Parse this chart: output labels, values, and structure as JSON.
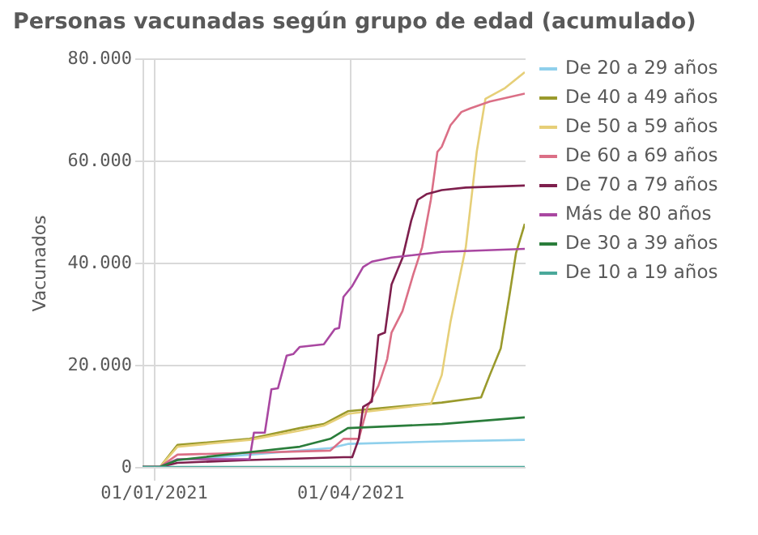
{
  "chart_data": {
    "type": "line",
    "title": "Personas vacunadas según grupo de edad (acumulado)",
    "ylabel": "Vacunados",
    "xlim": [
      "2020-12-27",
      "2021-06-20"
    ],
    "xticks": [
      {
        "value": "2021-01-01",
        "label": "01/01/2021"
      },
      {
        "value": "2021-04-01",
        "label": "01/04/2021"
      }
    ],
    "ylim": [
      0,
      80000
    ],
    "yticks": [
      {
        "value": 0,
        "label": "0"
      },
      {
        "value": 20000,
        "label": "20.000"
      },
      {
        "value": 40000,
        "label": "40.000"
      },
      {
        "value": 60000,
        "label": "60.000"
      },
      {
        "value": 80000,
        "label": "80.000"
      }
    ],
    "grid": true,
    "legend": "right",
    "series": [
      {
        "name": "De 20 a 29 años",
        "color": "#8fd0ec",
        "x": [
          "2020-12-27",
          "2021-01-04",
          "2021-01-12",
          "2021-02-14",
          "2021-03-23",
          "2021-03-31",
          "2021-05-13",
          "2021-06-20"
        ],
        "values": [
          0,
          0,
          1350,
          2400,
          3700,
          4500,
          5000,
          5300
        ]
      },
      {
        "name": "De 40 a 49 años",
        "color": "#9a9a2c",
        "x": [
          "2020-12-27",
          "2021-01-04",
          "2021-01-12",
          "2021-02-14",
          "2021-03-09",
          "2021-03-20",
          "2021-03-31",
          "2021-05-13",
          "2021-05-31",
          "2021-06-04",
          "2021-06-09",
          "2021-06-13",
          "2021-06-16",
          "2021-06-20"
        ],
        "values": [
          0,
          0,
          4300,
          5500,
          7600,
          8400,
          10900,
          12600,
          13600,
          18000,
          23200,
          33600,
          41900,
          47600
        ]
      },
      {
        "name": "De 50 a 59 años",
        "color": "#e6cf78",
        "x": [
          "2020-12-27",
          "2021-01-04",
          "2021-01-12",
          "2021-02-14",
          "2021-03-09",
          "2021-03-20",
          "2021-03-31",
          "2021-05-08",
          "2021-05-13",
          "2021-05-17",
          "2021-05-24",
          "2021-05-29",
          "2021-06-02",
          "2021-06-11",
          "2021-06-20"
        ],
        "values": [
          0,
          0,
          3950,
          5300,
          7100,
          8100,
          10400,
          12300,
          18000,
          28400,
          43000,
          61700,
          72100,
          74200,
          77300
        ]
      },
      {
        "name": "De 60 a 69 años",
        "color": "#db6f86",
        "x": [
          "2020-12-27",
          "2021-01-04",
          "2021-01-12",
          "2021-03-23",
          "2021-03-29",
          "2021-04-05",
          "2021-04-09",
          "2021-04-14",
          "2021-04-18",
          "2021-04-20",
          "2021-04-25",
          "2021-04-30",
          "2021-05-04",
          "2021-05-08",
          "2021-05-11",
          "2021-05-13",
          "2021-05-17",
          "2021-05-22",
          "2021-05-26",
          "2021-06-04",
          "2021-06-20"
        ],
        "values": [
          0,
          0,
          2400,
          3200,
          5500,
          5500,
          11750,
          15900,
          21100,
          26300,
          30500,
          37750,
          43000,
          52300,
          61700,
          62700,
          66900,
          69500,
          70200,
          71550,
          73100
        ]
      },
      {
        "name": "De 70 a 79 años",
        "color": "#7e1f4d",
        "x": [
          "2020-12-27",
          "2021-01-04",
          "2021-01-12",
          "2021-02-14",
          "2021-03-29",
          "2021-04-02",
          "2021-04-05",
          "2021-04-07",
          "2021-04-11",
          "2021-04-14",
          "2021-04-17",
          "2021-04-20",
          "2021-04-25",
          "2021-04-29",
          "2021-05-02",
          "2021-05-06",
          "2021-05-13",
          "2021-05-24",
          "2021-06-20"
        ],
        "values": [
          0,
          0,
          800,
          1350,
          1900,
          1900,
          5500,
          11750,
          12800,
          25800,
          26300,
          35700,
          40900,
          48200,
          52300,
          53400,
          54200,
          54700,
          55100
        ]
      },
      {
        "name": "Más de 80 años",
        "color": "#a947a1",
        "x": [
          "2020-12-27",
          "2021-01-04",
          "2021-01-12",
          "2021-02-14",
          "2021-02-16",
          "2021-02-21",
          "2021-02-24",
          "2021-02-27",
          "2021-03-03",
          "2021-03-06",
          "2021-03-09",
          "2021-03-20",
          "2021-03-25",
          "2021-03-27",
          "2021-03-29",
          "2021-04-02",
          "2021-04-07",
          "2021-04-11",
          "2021-04-20",
          "2021-05-13",
          "2021-06-20"
        ],
        "values": [
          0,
          0,
          1500,
          1500,
          6700,
          6700,
          15200,
          15400,
          21800,
          22100,
          23500,
          24000,
          27000,
          27200,
          33300,
          35400,
          39150,
          40200,
          41000,
          42100,
          42700
        ]
      },
      {
        "name": "De 30 a 39 años",
        "color": "#2a7d3b",
        "x": [
          "2020-12-27",
          "2021-01-04",
          "2021-01-12",
          "2021-02-14",
          "2021-03-09",
          "2021-03-23",
          "2021-03-31",
          "2021-05-13",
          "2021-06-20"
        ],
        "values": [
          0,
          0,
          1350,
          2900,
          3950,
          5500,
          7600,
          8400,
          9700
        ]
      },
      {
        "name": "De 10 a 19 años",
        "color": "#4aa89a",
        "x": [
          "2020-12-27",
          "2021-06-20"
        ],
        "values": [
          0,
          0
        ]
      }
    ]
  }
}
